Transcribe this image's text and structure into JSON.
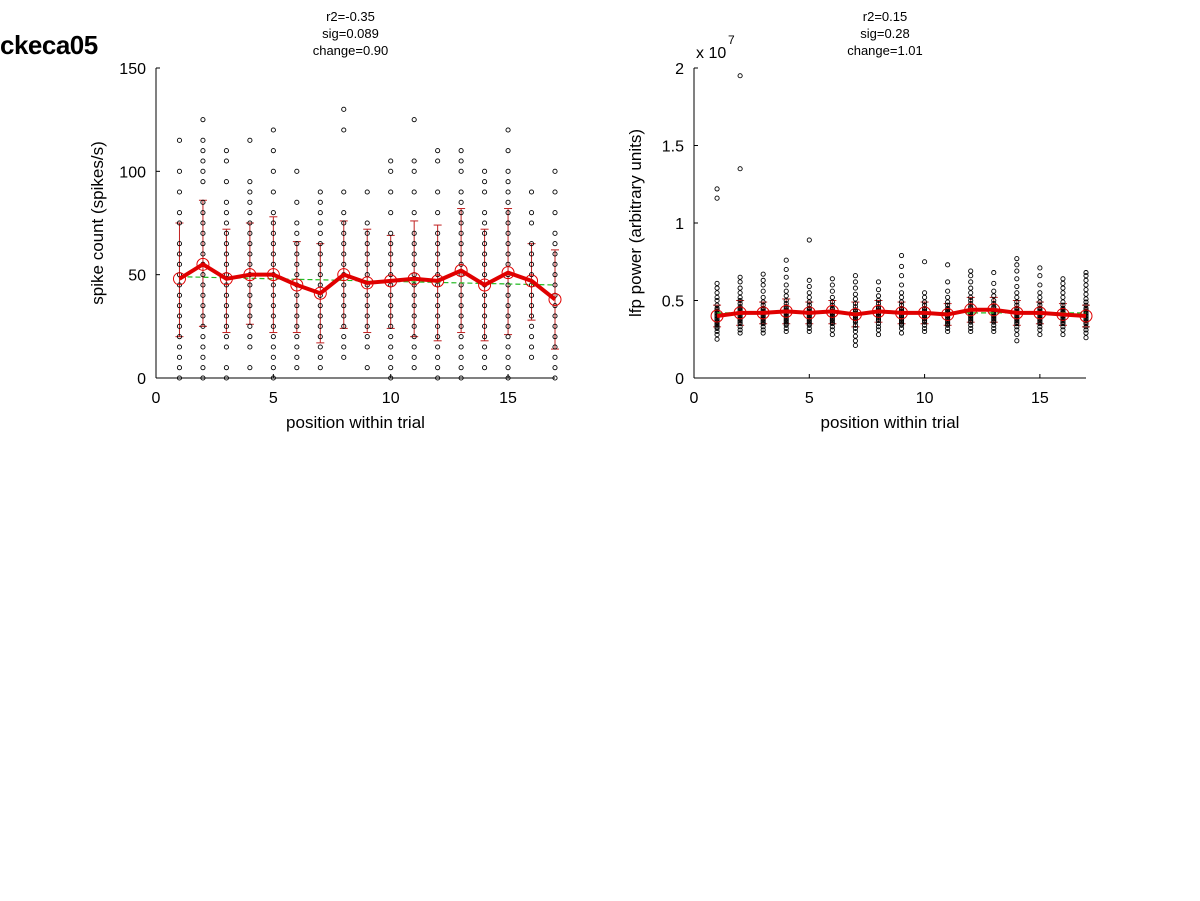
{
  "figure_title": "ckeca05",
  "colors": {
    "scatter": "#000000",
    "mean_line": "#e00000",
    "errorbar": "#c02020",
    "fit_line": "#22bb22"
  },
  "chart_data": [
    {
      "type": "scatter",
      "annotation": [
        "r2=-0.35",
        "sig=0.089",
        "change=0.90"
      ],
      "xlabel": "position within trial",
      "ylabel": "spike count (spikes/s)",
      "xlim": [
        0,
        17
      ],
      "ylim": [
        0,
        150
      ],
      "xticks": [
        0,
        5,
        10,
        15
      ],
      "yticks": [
        0,
        50,
        100,
        150
      ],
      "x_positions": [
        1,
        2,
        3,
        4,
        5,
        6,
        7,
        8,
        9,
        10,
        11,
        12,
        13,
        14,
        15,
        16,
        17
      ],
      "mean": [
        48,
        55,
        48,
        50,
        50,
        45,
        41,
        50,
        46,
        47,
        48,
        47,
        52,
        45,
        51,
        47,
        38
      ],
      "errorbar": [
        [
          20,
          75
        ],
        [
          25,
          86
        ],
        [
          22,
          72
        ],
        [
          26,
          75
        ],
        [
          22,
          78
        ],
        [
          22,
          66
        ],
        [
          17,
          65
        ],
        [
          24,
          76
        ],
        [
          22,
          72
        ],
        [
          24,
          69
        ],
        [
          20,
          76
        ],
        [
          18,
          74
        ],
        [
          22,
          82
        ],
        [
          18,
          72
        ],
        [
          21,
          82
        ],
        [
          28,
          65
        ],
        [
          14,
          62
        ]
      ],
      "fit_line": {
        "x": [
          1,
          17
        ],
        "y": [
          49,
          45
        ]
      },
      "points": [
        [
          0,
          5,
          10,
          15,
          20,
          25,
          30,
          35,
          40,
          45,
          50,
          55,
          60,
          65,
          75,
          80,
          90,
          100,
          115
        ],
        [
          0,
          5,
          10,
          15,
          20,
          25,
          30,
          35,
          40,
          45,
          50,
          55,
          60,
          65,
          70,
          75,
          80,
          85,
          95,
          100,
          105,
          110,
          115,
          125
        ],
        [
          0,
          5,
          15,
          20,
          25,
          30,
          35,
          40,
          45,
          50,
          55,
          60,
          65,
          70,
          75,
          80,
          85,
          95,
          105,
          110
        ],
        [
          5,
          15,
          20,
          25,
          30,
          35,
          40,
          45,
          50,
          55,
          60,
          65,
          70,
          75,
          80,
          85,
          90,
          95,
          115
        ],
        [
          0,
          5,
          10,
          15,
          20,
          25,
          30,
          35,
          40,
          45,
          50,
          55,
          60,
          65,
          70,
          75,
          80,
          90,
          100,
          110,
          120
        ],
        [
          5,
          10,
          15,
          20,
          25,
          30,
          35,
          40,
          45,
          50,
          55,
          60,
          65,
          70,
          75,
          85,
          100
        ],
        [
          5,
          10,
          15,
          20,
          25,
          30,
          35,
          40,
          45,
          50,
          55,
          60,
          65,
          70,
          75,
          80,
          85,
          90
        ],
        [
          10,
          15,
          20,
          25,
          30,
          35,
          40,
          45,
          50,
          55,
          60,
          65,
          70,
          75,
          80,
          90,
          120,
          130
        ],
        [
          5,
          15,
          20,
          25,
          30,
          35,
          40,
          45,
          50,
          55,
          60,
          65,
          70,
          75,
          90
        ],
        [
          0,
          5,
          10,
          15,
          20,
          25,
          30,
          35,
          40,
          45,
          50,
          55,
          60,
          65,
          70,
          80,
          90,
          100,
          105
        ],
        [
          5,
          10,
          15,
          20,
          25,
          30,
          35,
          40,
          45,
          50,
          55,
          60,
          65,
          70,
          80,
          90,
          100,
          105,
          125
        ],
        [
          0,
          5,
          10,
          15,
          20,
          25,
          30,
          35,
          40,
          45,
          50,
          55,
          60,
          65,
          70,
          80,
          90,
          105,
          110
        ],
        [
          0,
          5,
          10,
          15,
          20,
          25,
          30,
          35,
          40,
          45,
          50,
          55,
          60,
          65,
          70,
          75,
          80,
          85,
          90,
          100,
          105,
          110
        ],
        [
          5,
          10,
          15,
          20,
          25,
          30,
          35,
          40,
          45,
          50,
          55,
          60,
          65,
          70,
          75,
          80,
          90,
          95,
          100
        ],
        [
          0,
          5,
          10,
          15,
          20,
          25,
          30,
          35,
          40,
          45,
          50,
          55,
          60,
          65,
          70,
          75,
          80,
          85,
          90,
          95,
          100,
          110,
          120
        ],
        [
          10,
          15,
          20,
          25,
          30,
          35,
          40,
          45,
          50,
          55,
          60,
          65,
          75,
          80,
          90
        ],
        [
          0,
          5,
          10,
          15,
          20,
          25,
          30,
          35,
          40,
          45,
          50,
          55,
          60,
          65,
          70,
          80,
          90,
          100
        ]
      ]
    },
    {
      "type": "scatter",
      "annotation": [
        "r2=0.15",
        "sig=0.28",
        "change=1.01"
      ],
      "xlabel": "position within trial",
      "ylabel": "lfp power (arbitrary units)",
      "y_multiplier": "x 10",
      "y_exponent": "7",
      "xlim": [
        0,
        17
      ],
      "ylim": [
        0,
        2
      ],
      "xticks": [
        0,
        5,
        10,
        15
      ],
      "yticks": [
        0,
        0.5,
        1,
        1.5,
        2
      ],
      "ytick_labels": [
        "0",
        "0.5",
        "1",
        "1.5",
        "2"
      ],
      "x_positions": [
        1,
        2,
        3,
        4,
        5,
        6,
        7,
        8,
        9,
        10,
        11,
        12,
        13,
        14,
        15,
        16,
        17
      ],
      "mean": [
        0.4,
        0.42,
        0.42,
        0.43,
        0.42,
        0.43,
        0.41,
        0.43,
        0.42,
        0.42,
        0.41,
        0.44,
        0.44,
        0.42,
        0.42,
        0.41,
        0.4
      ],
      "errorbar": [
        [
          0.33,
          0.47
        ],
        [
          0.34,
          0.5
        ],
        [
          0.35,
          0.49
        ],
        [
          0.35,
          0.51
        ],
        [
          0.35,
          0.49
        ],
        [
          0.35,
          0.5
        ],
        [
          0.33,
          0.49
        ],
        [
          0.36,
          0.5
        ],
        [
          0.35,
          0.49
        ],
        [
          0.35,
          0.49
        ],
        [
          0.34,
          0.48
        ],
        [
          0.36,
          0.52
        ],
        [
          0.36,
          0.52
        ],
        [
          0.34,
          0.5
        ],
        [
          0.35,
          0.49
        ],
        [
          0.34,
          0.48
        ],
        [
          0.33,
          0.47
        ]
      ],
      "fit_line": {
        "x": [
          1,
          17
        ],
        "y": [
          0.42,
          0.42
        ]
      },
      "points": [
        [
          0.25,
          0.28,
          0.3,
          0.32,
          0.33,
          0.34,
          0.35,
          0.36,
          0.37,
          0.38,
          0.39,
          0.4,
          0.41,
          0.42,
          0.43,
          0.44,
          0.45,
          0.47,
          0.5,
          0.52,
          0.55,
          0.58,
          0.61,
          1.16,
          1.22
        ],
        [
          0.29,
          0.31,
          0.33,
          0.35,
          0.36,
          0.37,
          0.38,
          0.39,
          0.4,
          0.41,
          0.42,
          0.43,
          0.44,
          0.45,
          0.46,
          0.48,
          0.5,
          0.52,
          0.55,
          0.58,
          0.62,
          0.65,
          1.35,
          1.95
        ],
        [
          0.29,
          0.31,
          0.33,
          0.35,
          0.36,
          0.37,
          0.38,
          0.39,
          0.4,
          0.41,
          0.42,
          0.43,
          0.44,
          0.45,
          0.47,
          0.49,
          0.52,
          0.56,
          0.6,
          0.63,
          0.67
        ],
        [
          0.3,
          0.32,
          0.34,
          0.35,
          0.36,
          0.37,
          0.38,
          0.39,
          0.4,
          0.41,
          0.42,
          0.43,
          0.44,
          0.45,
          0.46,
          0.48,
          0.5,
          0.53,
          0.56,
          0.6,
          0.65,
          0.7,
          0.76
        ],
        [
          0.3,
          0.32,
          0.34,
          0.35,
          0.36,
          0.37,
          0.38,
          0.39,
          0.4,
          0.41,
          0.42,
          0.43,
          0.44,
          0.45,
          0.47,
          0.49,
          0.52,
          0.55,
          0.59,
          0.63,
          0.89
        ],
        [
          0.28,
          0.31,
          0.33,
          0.35,
          0.36,
          0.37,
          0.38,
          0.39,
          0.4,
          0.41,
          0.42,
          0.43,
          0.44,
          0.45,
          0.47,
          0.49,
          0.52,
          0.56,
          0.6,
          0.64
        ],
        [
          0.21,
          0.24,
          0.27,
          0.3,
          0.32,
          0.34,
          0.36,
          0.37,
          0.38,
          0.39,
          0.4,
          0.41,
          0.42,
          0.43,
          0.44,
          0.46,
          0.48,
          0.51,
          0.54,
          0.58,
          0.62,
          0.66
        ],
        [
          0.28,
          0.31,
          0.33,
          0.35,
          0.37,
          0.38,
          0.39,
          0.4,
          0.41,
          0.42,
          0.43,
          0.44,
          0.45,
          0.46,
          0.48,
          0.5,
          0.53,
          0.57,
          0.62
        ],
        [
          0.29,
          0.32,
          0.34,
          0.35,
          0.36,
          0.37,
          0.38,
          0.39,
          0.4,
          0.41,
          0.42,
          0.43,
          0.44,
          0.45,
          0.47,
          0.49,
          0.52,
          0.55,
          0.6,
          0.66,
          0.72,
          0.79
        ],
        [
          0.3,
          0.32,
          0.34,
          0.36,
          0.37,
          0.38,
          0.39,
          0.4,
          0.41,
          0.42,
          0.43,
          0.44,
          0.45,
          0.47,
          0.49,
          0.52,
          0.55,
          0.75
        ],
        [
          0.3,
          0.32,
          0.34,
          0.35,
          0.36,
          0.37,
          0.38,
          0.39,
          0.4,
          0.41,
          0.42,
          0.43,
          0.44,
          0.45,
          0.47,
          0.49,
          0.52,
          0.56,
          0.62,
          0.73
        ],
        [
          0.3,
          0.32,
          0.34,
          0.36,
          0.37,
          0.38,
          0.39,
          0.4,
          0.41,
          0.42,
          0.43,
          0.44,
          0.45,
          0.46,
          0.48,
          0.5,
          0.52,
          0.55,
          0.58,
          0.62,
          0.66,
          0.69
        ],
        [
          0.3,
          0.32,
          0.34,
          0.36,
          0.37,
          0.38,
          0.39,
          0.4,
          0.41,
          0.42,
          0.43,
          0.44,
          0.45,
          0.46,
          0.48,
          0.5,
          0.53,
          0.56,
          0.61,
          0.68
        ],
        [
          0.24,
          0.28,
          0.31,
          0.33,
          0.35,
          0.36,
          0.37,
          0.38,
          0.39,
          0.4,
          0.41,
          0.42,
          0.43,
          0.44,
          0.45,
          0.47,
          0.49,
          0.52,
          0.55,
          0.59,
          0.64,
          0.69,
          0.73,
          0.77
        ],
        [
          0.28,
          0.31,
          0.33,
          0.35,
          0.36,
          0.37,
          0.38,
          0.39,
          0.4,
          0.41,
          0.42,
          0.43,
          0.44,
          0.45,
          0.47,
          0.49,
          0.52,
          0.55,
          0.6,
          0.66,
          0.71
        ],
        [
          0.28,
          0.31,
          0.33,
          0.35,
          0.36,
          0.37,
          0.38,
          0.39,
          0.4,
          0.41,
          0.42,
          0.43,
          0.44,
          0.45,
          0.47,
          0.49,
          0.52,
          0.55,
          0.58,
          0.61,
          0.64
        ],
        [
          0.26,
          0.29,
          0.31,
          0.33,
          0.35,
          0.36,
          0.37,
          0.38,
          0.39,
          0.4,
          0.41,
          0.42,
          0.43,
          0.44,
          0.45,
          0.47,
          0.49,
          0.51,
          0.54,
          0.57,
          0.6,
          0.63,
          0.66,
          0.68
        ]
      ]
    }
  ]
}
